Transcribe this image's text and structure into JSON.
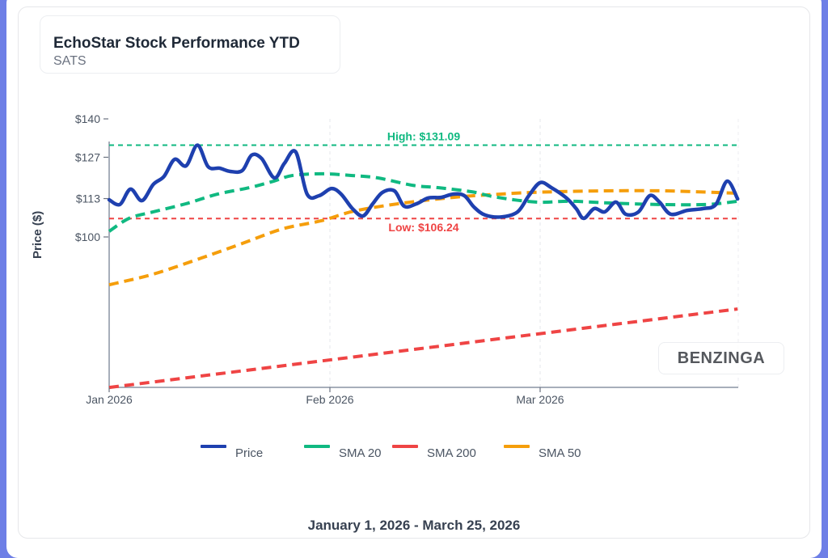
{
  "header": {
    "title": "EchoStar Stock Performance YTD",
    "ticker": "SATS"
  },
  "watermark": "BENZINGA",
  "footer": {
    "date_range": "January 1, 2026 - March 25, 2026"
  },
  "colors": {
    "price": "#1e40af",
    "sma20": "#10b981",
    "sma200": "#ef4444",
    "sma50": "#f59e0b",
    "high": "#10b981",
    "low": "#ef4444",
    "frame": "#6e7fe6"
  },
  "chart_data": {
    "type": "line",
    "title": "EchoStar Stock Performance YTD",
    "subtitle": "SATS",
    "xlabel": "",
    "ylabel": "Price ($)",
    "x_unit": "days since Jan 1, 2026",
    "xlim": [
      0,
      83
    ],
    "ylim": [
      49,
      141
    ],
    "x_ticks": [
      {
        "day": 0,
        "label": "Jan 2026"
      },
      {
        "day": 31,
        "label": "Feb 2026"
      },
      {
        "day": 59,
        "label": "Mar 2026"
      }
    ],
    "y_ticks": [
      {
        "value": 140,
        "label": "$140"
      },
      {
        "value": 127,
        "label": "$127"
      },
      {
        "value": 113,
        "label": "$113"
      },
      {
        "value": 100,
        "label": "$100"
      }
    ],
    "grid": "vertical dashed at month ticks",
    "legend_position": "bottom",
    "annotations": [
      {
        "name": "high",
        "label": "High: $131.09",
        "value": 131.09
      },
      {
        "name": "low",
        "label": "Low: $106.24",
        "value": 106.24
      }
    ],
    "series": [
      {
        "name": "Price",
        "key": "price",
        "style": "solid",
        "x": [
          0,
          1.5,
          3,
          4.6,
          6.2,
          7.7,
          9.2,
          10.8,
          12.4,
          13.9,
          15.5,
          17,
          18.7,
          20,
          21.4,
          23.2,
          24.6,
          26.2,
          27.8,
          29.5,
          31.2,
          32.5,
          34,
          35.4,
          36.7,
          38,
          39.6,
          40.9,
          42.5,
          44.1,
          45.8,
          47.4,
          48.9,
          50.2,
          51.7,
          53.9,
          56,
          57.5,
          59,
          60.5,
          62.5,
          63.8,
          64.8,
          66.2,
          67.6,
          69.1,
          70.4,
          72.1,
          73.6,
          74.9,
          76.4,
          78.6,
          80.7,
          82.4,
          83.9,
          85.3
        ],
        "values": [
          112.6,
          111.0,
          116.2,
          112.3,
          117.8,
          120.5,
          126.3,
          124.1,
          131.1,
          123.8,
          123.3,
          122.2,
          122.5,
          127.7,
          126.6,
          120.0,
          124.9,
          128.8,
          114.5,
          114.0,
          116.4,
          114.5,
          109.6,
          107.1,
          111.2,
          115.1,
          115.6,
          110.4,
          111.2,
          113.2,
          113.4,
          114.5,
          114.0,
          110.1,
          107.4,
          106.8,
          108.5,
          114.0,
          118.4,
          116.7,
          113.2,
          109.6,
          106.3,
          109.6,
          108.5,
          111.8,
          107.7,
          108.5,
          114.0,
          111.8,
          107.7,
          109.0,
          109.6,
          111.0,
          118.9,
          112.9
        ]
      },
      {
        "name": "SMA 20",
        "key": "sma20",
        "style": "dashed",
        "x": [
          0,
          2.8,
          6.2,
          10.7,
          15.2,
          19.7,
          23.1,
          25.7,
          29.8,
          34,
          37.4,
          42,
          45.4,
          49.9,
          53.1,
          58.5,
          62.9,
          68.3,
          74.7,
          81.2,
          85.3
        ],
        "values": [
          101.9,
          106.3,
          108.5,
          111.2,
          114.5,
          116.7,
          118.9,
          120.8,
          121.4,
          120.8,
          120.0,
          117.5,
          116.7,
          115.3,
          113.5,
          111.8,
          112.1,
          111.5,
          111.0,
          111.0,
          112.1
        ]
      },
      {
        "name": "SMA 200",
        "key": "sma200",
        "style": "dashed",
        "x": [
          0,
          85.3
        ],
        "values": [
          49.0,
          75.6
        ]
      },
      {
        "name": "SMA 50",
        "key": "sma50",
        "style": "dashed",
        "x": [
          0,
          6.2,
          13,
          18.7,
          24.3,
          29.8,
          34.3,
          40.8,
          47.4,
          51.7,
          58.2,
          67.1,
          75.8,
          85.3
        ],
        "values": [
          83.8,
          87.4,
          92.9,
          97.8,
          102.7,
          105.5,
          108.8,
          111.5,
          113.4,
          114.2,
          115.1,
          115.6,
          115.6,
          114.8
        ]
      }
    ]
  }
}
